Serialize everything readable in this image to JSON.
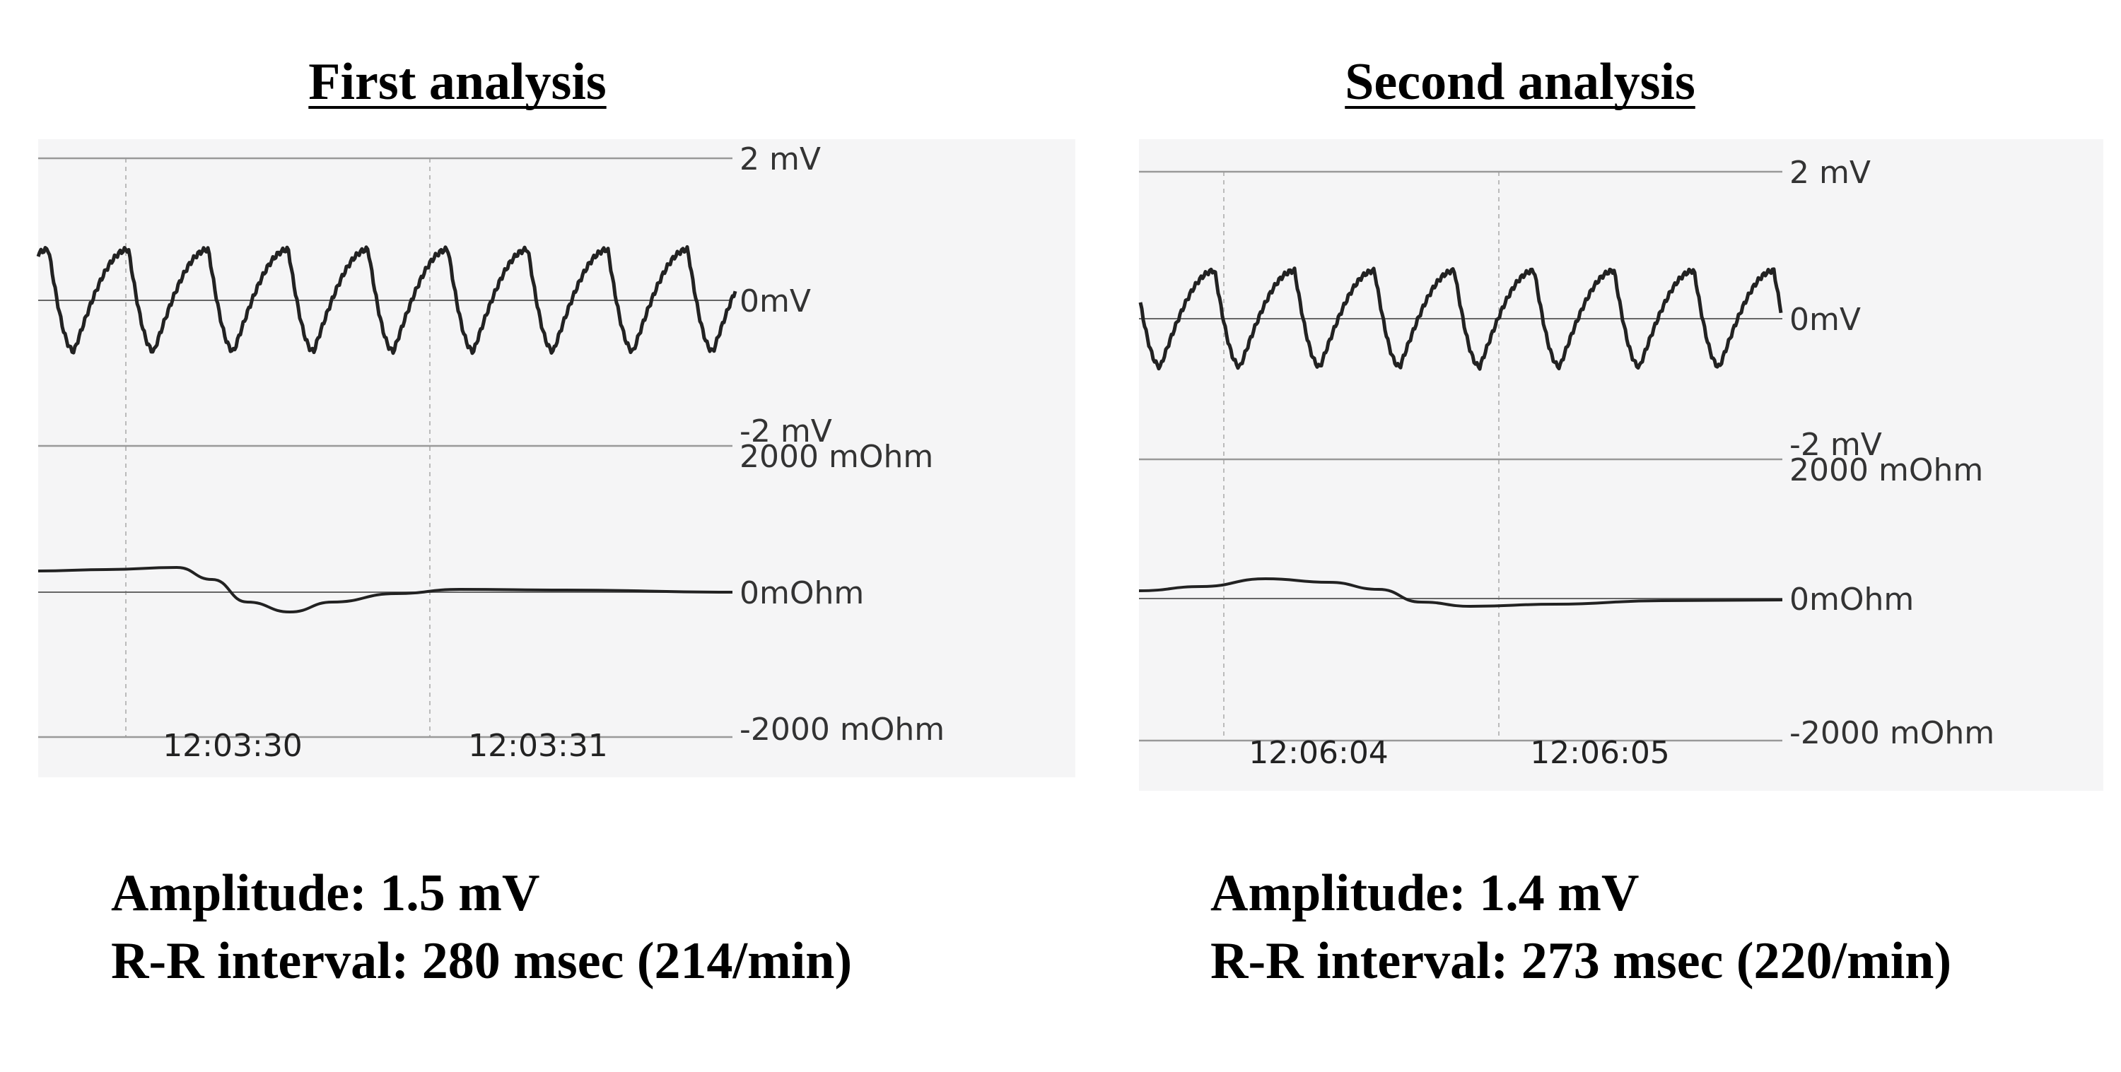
{
  "panels": [
    {
      "title": "First analysis",
      "ecg_labels": [
        "2 mV",
        "0mV",
        "-2 mV"
      ],
      "impedance_labels": [
        "2000 mOhm",
        "0mOhm",
        "-2000 mOhm"
      ],
      "time_labels": [
        "12:03:30",
        "12:03:31"
      ],
      "amplitude": "Amplitude: 1.5 mV",
      "rr_interval": "R-R interval: 280 msec (214/min)"
    },
    {
      "title": "Second analysis",
      "ecg_labels": [
        "2 mV",
        "0mV",
        "-2 mV"
      ],
      "impedance_labels": [
        "2000 mOhm",
        "0mOhm",
        "-2000 mOhm"
      ],
      "time_labels": [
        "12:06:04",
        "12:06:05"
      ],
      "amplitude": "Amplitude: 1.4 mV",
      "rr_interval": "R-R interval: 273 msec (220/min)"
    }
  ]
}
